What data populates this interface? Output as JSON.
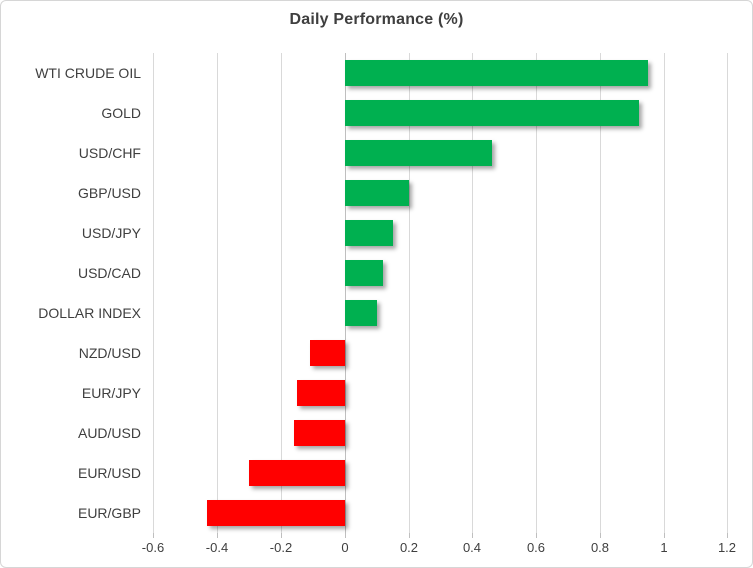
{
  "chart_data": {
    "type": "bar",
    "orientation": "horizontal",
    "title": "Daily Performance (%)",
    "categories": [
      "WTI CRUDE OIL",
      "GOLD",
      "USD/CHF",
      "GBP/USD",
      "USD/JPY",
      "USD/CAD",
      "DOLLAR INDEX",
      "NZD/USD",
      "EUR/JPY",
      "AUD/USD",
      "EUR/USD",
      "EUR/GBP"
    ],
    "values": [
      0.95,
      0.92,
      0.46,
      0.2,
      0.15,
      0.12,
      0.1,
      -0.11,
      -0.15,
      -0.16,
      -0.3,
      -0.43
    ],
    "xlabel": "",
    "ylabel": "",
    "xlim": [
      -0.6,
      1.2
    ],
    "xticks": [
      -0.6,
      -0.4,
      -0.2,
      0,
      0.2,
      0.4,
      0.6,
      0.8,
      1,
      1.2
    ],
    "xtick_labels": [
      "-0.6",
      "-0.4",
      "-0.2",
      "0",
      "0.2",
      "0.4",
      "0.6",
      "0.8",
      "1",
      "1.2"
    ],
    "grid": true,
    "legend": false,
    "positive_color": "#00B050",
    "negative_color": "#FF0000"
  },
  "colors": {
    "positive": "#00B050",
    "negative": "#FF0000",
    "gridline": "#d9d9d9",
    "axis_line": "#bfbfbf",
    "text": "#3f3f3f",
    "card_border": "#d6d6d6"
  }
}
